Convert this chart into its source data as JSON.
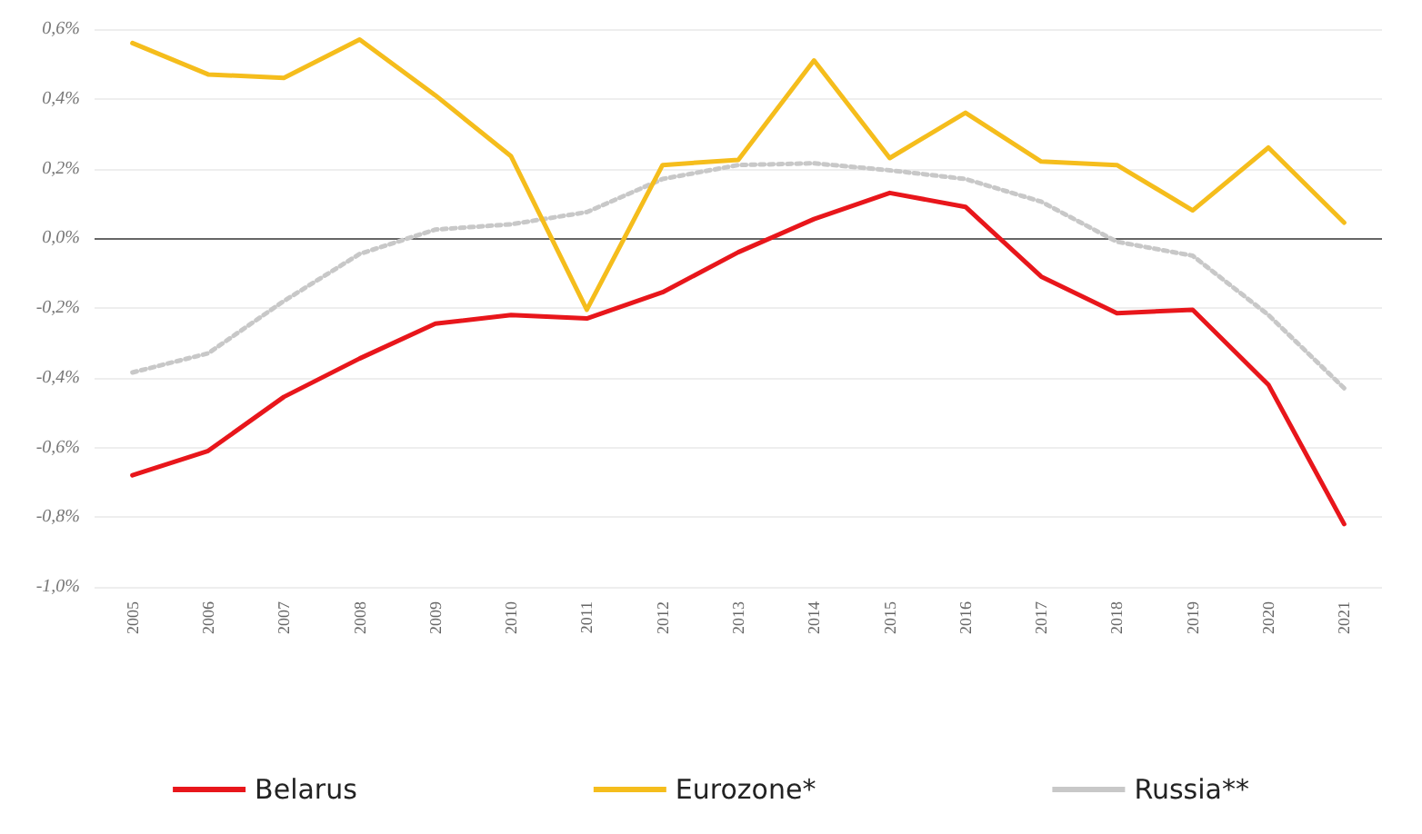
{
  "chart_data": {
    "type": "line",
    "categories": [
      "2005",
      "2006",
      "2007",
      "2008",
      "2009",
      "2010",
      "2011",
      "2012",
      "2013",
      "2014",
      "2015",
      "2016",
      "2017",
      "2018",
      "2019",
      "2020",
      "2021"
    ],
    "series": [
      {
        "name": "Belarus",
        "color": "#e8161b",
        "values": [
          -0.68,
          -0.61,
          -0.455,
          -0.345,
          -0.245,
          -0.22,
          -0.23,
          -0.155,
          -0.04,
          0.055,
          0.13,
          0.09,
          -0.11,
          -0.215,
          -0.205,
          -0.42,
          -0.82
        ]
      },
      {
        "name": "Eurozone*",
        "color": "#f5bd1c",
        "values": [
          0.56,
          0.47,
          0.46,
          0.57,
          0.41,
          0.235,
          -0.205,
          0.21,
          0.225,
          0.51,
          0.23,
          0.36,
          0.22,
          0.21,
          0.08,
          0.26,
          0.045
        ]
      },
      {
        "name": "Russia**",
        "color": "#c8c8c8",
        "line_style": "dotted",
        "values": [
          -0.385,
          -0.33,
          -0.18,
          -0.045,
          0.025,
          0.04,
          0.075,
          0.17,
          0.21,
          0.215,
          0.195,
          0.17,
          0.105,
          -0.01,
          -0.05,
          -0.22,
          -0.43
        ]
      }
    ],
    "ylim": [
      -1.0,
      0.6
    ],
    "yticks": [
      {
        "value": -1.0,
        "label": "-1,0%"
      },
      {
        "value": -0.8,
        "label": "-0,8%"
      },
      {
        "value": -0.6,
        "label": "-0,6%"
      },
      {
        "value": -0.4,
        "label": "-0,4%"
      },
      {
        "value": -0.2,
        "label": "-0,2%"
      },
      {
        "value": 0,
        "label": "0,0%"
      },
      {
        "value": 0.2,
        "label": "0,2%"
      },
      {
        "value": 0.4,
        "label": "0,4%"
      },
      {
        "value": 0.6,
        "label": "0,6%"
      }
    ],
    "ref_lines": [
      {
        "axis": "y",
        "value": 0,
        "color": "#666666"
      }
    ],
    "grid": "y",
    "legend": "bottom",
    "marker": "none",
    "line_style": "solid"
  }
}
